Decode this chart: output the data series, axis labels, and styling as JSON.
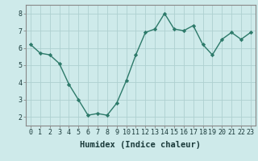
{
  "x": [
    0,
    1,
    2,
    3,
    4,
    5,
    6,
    7,
    8,
    9,
    10,
    11,
    12,
    13,
    14,
    15,
    16,
    17,
    18,
    19,
    20,
    21,
    22,
    23
  ],
  "y": [
    6.2,
    5.7,
    5.6,
    5.1,
    3.9,
    3.0,
    2.1,
    2.2,
    2.1,
    2.8,
    4.1,
    5.6,
    6.9,
    7.1,
    8.0,
    7.1,
    7.0,
    7.3,
    6.2,
    5.6,
    6.5,
    6.9,
    6.5,
    6.9
  ],
  "line_color": "#2d7a6a",
  "marker": "D",
  "marker_size": 2.2,
  "bg_color": "#ceeaea",
  "grid_color": "#aed0d0",
  "xlabel": "Humidex (Indice chaleur)",
  "xlabel_fontsize": 7.5,
  "xlim": [
    -0.5,
    23.5
  ],
  "ylim": [
    1.5,
    8.5
  ],
  "yticks": [
    2,
    3,
    4,
    5,
    6,
    7,
    8
  ],
  "xticks": [
    0,
    1,
    2,
    3,
    4,
    5,
    6,
    7,
    8,
    9,
    10,
    11,
    12,
    13,
    14,
    15,
    16,
    17,
    18,
    19,
    20,
    21,
    22,
    23
  ],
  "tick_fontsize": 6.0,
  "linewidth": 1.0,
  "spine_color": "#888888"
}
